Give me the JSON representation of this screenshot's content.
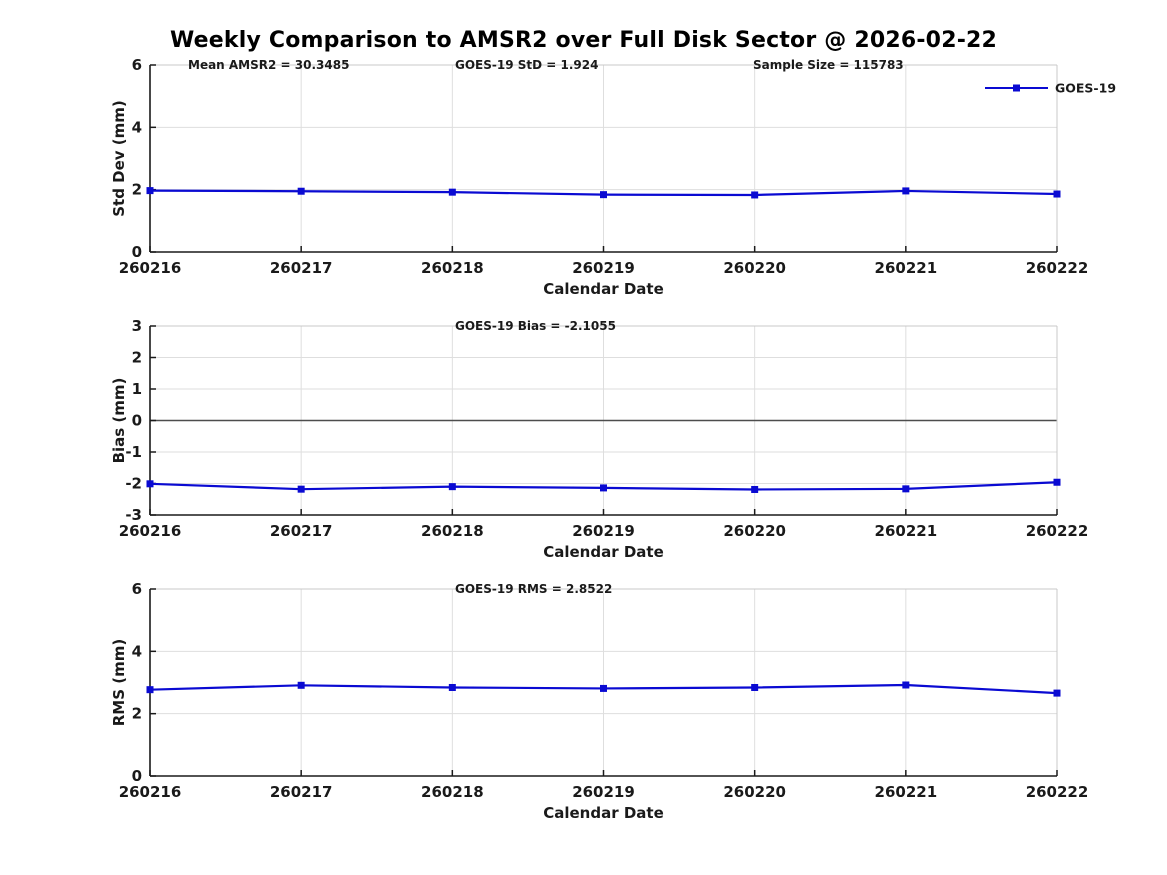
{
  "title": "Weekly Comparison to AMSR2 over Full Disk Sector @ 2026-02-22",
  "colors": {
    "line": "#0a0ad2",
    "marker": "#0a0ad2",
    "grid": "#dedede",
    "axis_dark": "#1a1a1a",
    "axis_light": "#c8c8c8",
    "zero_line": "#4d4d4d",
    "text": "#1a1a1a",
    "background": "#ffffff"
  },
  "chart_data": [
    {
      "type": "line",
      "categories": [
        "260216",
        "260217",
        "260218",
        "260219",
        "260220",
        "260221",
        "260222"
      ],
      "series": [
        {
          "name": "GOES-19",
          "values": [
            1.97,
            1.95,
            1.92,
            1.84,
            1.83,
            1.96,
            1.86
          ]
        }
      ],
      "ylabel": "Std Dev (mm)",
      "xlabel": "Calendar Date",
      "ylim": [
        0,
        6
      ],
      "yticks": [
        "0",
        "2",
        "4",
        "6"
      ],
      "ytick_values": [
        0,
        2,
        4,
        6
      ],
      "annotations": [
        "Mean AMSR2 = 30.3485",
        "GOES-19 StD = 1.924",
        "Sample Size = 115783"
      ],
      "legend": {
        "visible": true,
        "entries": [
          "GOES-19"
        ],
        "position": "top-right"
      },
      "grid": true,
      "zero_line": false,
      "marker": "square"
    },
    {
      "type": "line",
      "categories": [
        "260216",
        "260217",
        "260218",
        "260219",
        "260220",
        "260221",
        "260222"
      ],
      "series": [
        {
          "name": "GOES-19",
          "values": [
            -2.01,
            -2.18,
            -2.1,
            -2.14,
            -2.19,
            -2.17,
            -1.96
          ]
        }
      ],
      "ylabel": "Bias (mm)",
      "xlabel": "Calendar Date",
      "ylim": [
        -3,
        3
      ],
      "yticks": [
        "-3",
        "-2",
        "-1",
        "0",
        "1",
        "2",
        "3"
      ],
      "ytick_values": [
        -3,
        -2,
        -1,
        0,
        1,
        2,
        3
      ],
      "annotations": [
        "GOES-19 Bias  = -2.1055"
      ],
      "legend": {
        "visible": false,
        "entries": [],
        "position": ""
      },
      "grid": true,
      "zero_line": true,
      "marker": "square"
    },
    {
      "type": "line",
      "categories": [
        "260216",
        "260217",
        "260218",
        "260219",
        "260220",
        "260221",
        "260222"
      ],
      "series": [
        {
          "name": "GOES-19",
          "values": [
            2.77,
            2.91,
            2.84,
            2.81,
            2.84,
            2.92,
            2.66
          ]
        }
      ],
      "ylabel": "RMS (mm)",
      "xlabel": "Calendar Date",
      "ylim": [
        0,
        6
      ],
      "yticks": [
        "0",
        "2",
        "4",
        "6"
      ],
      "ytick_values": [
        0,
        2,
        4,
        6
      ],
      "annotations": [
        "GOES-19 RMS = 2.8522"
      ],
      "legend": {
        "visible": false,
        "entries": [],
        "position": ""
      },
      "grid": true,
      "zero_line": false,
      "marker": "square"
    }
  ]
}
